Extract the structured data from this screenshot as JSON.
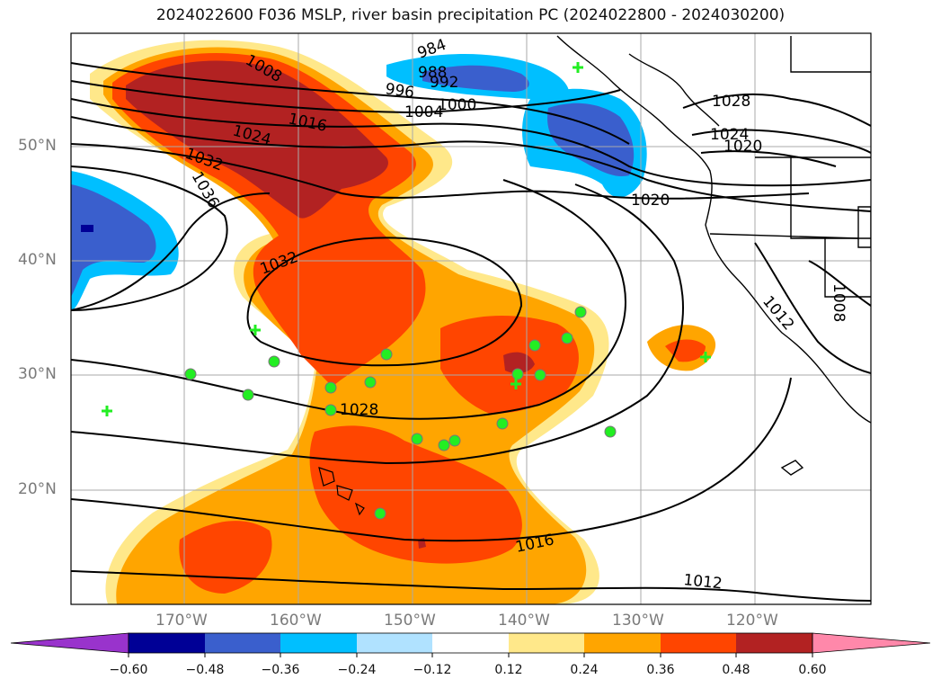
{
  "title": "2024022600 F036 MSLP, river basin precipitation PC (2024022800 - 2024030200)",
  "map": {
    "latitude_labels": [
      "50°N",
      "40°N",
      "30°N",
      "20°N"
    ],
    "longitude_labels": [
      "170°W",
      "160°W",
      "150°W",
      "140°W",
      "130°W",
      "120°W"
    ],
    "grid": true,
    "isobar_labels": [
      "984",
      "988",
      "992",
      "996",
      "1000",
      "1004",
      "1008",
      "1016",
      "1024",
      "1032",
      "1036",
      "1028",
      "1024",
      "1020",
      "1020",
      "1032",
      "1012",
      "1008",
      "1028",
      "1016",
      "1012"
    ]
  },
  "colorbar": {
    "colors": [
      "#9933cc",
      "#000096",
      "#3a5fcd",
      "#00bfff",
      "#b0e2ff",
      "#ffffff",
      "#ffe88a",
      "#ffa500",
      "#ff4500",
      "#b22222",
      "#ff88aa"
    ],
    "tick_labels": [
      "−0.60",
      "−0.48",
      "−0.36",
      "−0.24",
      "−0.12",
      "0.12",
      "0.24",
      "0.36",
      "0.48",
      "0.60"
    ]
  },
  "markers": {
    "circle_color": "#22ee22",
    "cross_color": "#22ee22"
  }
}
